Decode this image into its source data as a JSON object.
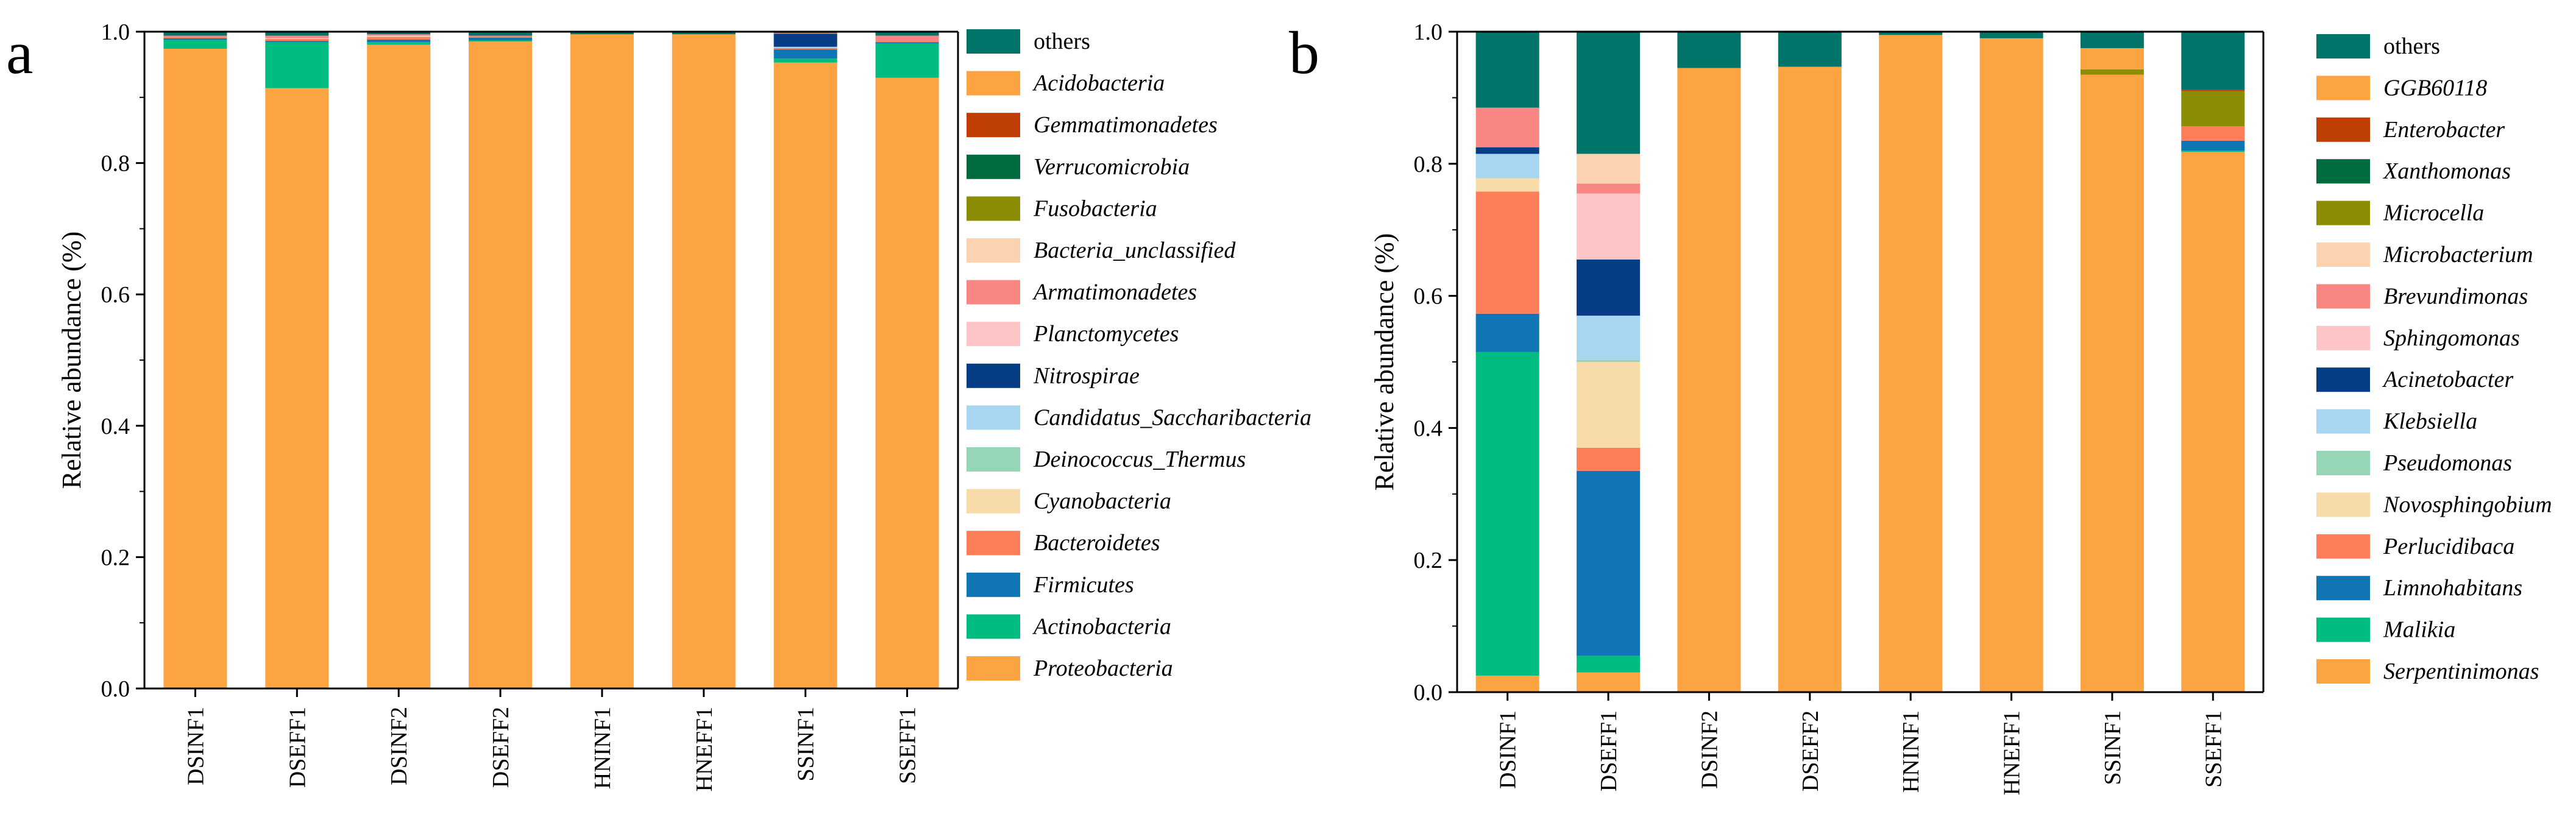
{
  "figure": {
    "panel_a_letter": "a",
    "panel_b_letter": "b"
  },
  "chart_data": [
    {
      "type": "bar",
      "stacked": true,
      "panel": "a",
      "title": "",
      "xlabel": "",
      "ylabel": "Relative abundance (%)",
      "ylim": [
        0,
        1.0
      ],
      "yticks": [
        "0.0",
        "0.2",
        "0.4",
        "0.6",
        "0.8",
        "1.0"
      ],
      "categories": [
        "DSINF1",
        "DSEFF1",
        "DSINF2",
        "DSEFF2",
        "HNINF1",
        "HNEFF1",
        "SSINF1",
        "SSEFF1"
      ],
      "legend_title": "",
      "legend_position": "right",
      "series": [
        {
          "name": "Proteobacteria",
          "color": "#FBA441",
          "italic": true,
          "values": [
            0.974,
            0.914,
            0.98,
            0.985,
            0.996,
            0.996,
            0.953,
            0.93
          ]
        },
        {
          "name": "Actinobacteria",
          "color": "#00BC80",
          "italic": true,
          "values": [
            0.014,
            0.07,
            0.004,
            0.002,
            0.0,
            0.0,
            0.006,
            0.052
          ]
        },
        {
          "name": "Firmicutes",
          "color": "#0F75B4",
          "italic": true,
          "values": [
            0.002,
            0.002,
            0.004,
            0.004,
            0.0,
            0.0,
            0.014,
            0.002
          ]
        },
        {
          "name": "Bacteroidetes",
          "color": "#FC7F5A",
          "italic": true,
          "values": [
            0.002,
            0.003,
            0.004,
            0.002,
            0.0,
            0.0,
            0.002,
            0.002
          ]
        },
        {
          "name": "Cyanobacteria",
          "color": "#F7DBA8",
          "italic": true,
          "values": [
            0.0,
            0.001,
            0.0,
            0.0,
            0.0,
            0.0,
            0.0,
            0.0
          ]
        },
        {
          "name": "Deinococcus_Thermus",
          "color": "#96D6B6",
          "italic": true,
          "values": [
            0.0,
            0.0,
            0.0,
            0.0,
            0.0,
            0.0,
            0.0,
            0.0
          ]
        },
        {
          "name": "Candidatus_Saccharibacteria",
          "color": "#A8D6F0",
          "italic": true,
          "values": [
            0.0,
            0.0,
            0.0,
            0.0,
            0.0,
            0.0,
            0.002,
            0.0
          ]
        },
        {
          "name": "Nitrospirae",
          "color": "#073D84",
          "italic": true,
          "values": [
            0.0,
            0.0,
            0.0,
            0.0,
            0.0,
            0.0,
            0.02,
            0.0
          ]
        },
        {
          "name": "Planctomycetes",
          "color": "#FDC5C5",
          "italic": true,
          "values": [
            0.0,
            0.0,
            0.002,
            0.0,
            0.0,
            0.0,
            0.0,
            0.0
          ]
        },
        {
          "name": "Armatimonadetes",
          "color": "#F98683",
          "italic": true,
          "values": [
            0.002,
            0.004,
            0.002,
            0.001,
            0.0,
            0.0,
            0.001,
            0.008
          ]
        },
        {
          "name": "Bacteria_unclassified",
          "color": "#FBD2B2",
          "italic": true,
          "values": [
            0.0,
            0.0,
            0.0,
            0.0,
            0.0,
            0.0,
            0.0,
            0.0
          ]
        },
        {
          "name": "Fusobacteria",
          "color": "#8B8E05",
          "italic": true,
          "values": [
            0.0,
            0.0,
            0.0,
            0.0,
            0.0,
            0.0,
            0.0,
            0.0
          ]
        },
        {
          "name": "Verrucomicrobia",
          "color": "#006B3E",
          "italic": true,
          "values": [
            0.0,
            0.0,
            0.0,
            0.0,
            0.0,
            0.0,
            0.0,
            0.0
          ]
        },
        {
          "name": "Gemmatimonadetes",
          "color": "#BF3E03",
          "italic": true,
          "values": [
            0.0,
            0.0,
            0.0,
            0.0,
            0.0,
            0.0,
            0.0,
            0.0
          ]
        },
        {
          "name": "Acidobacteria",
          "color": "#FBA441",
          "italic": true,
          "values": [
            0.0,
            0.0,
            0.0,
            0.0,
            0.0,
            0.0,
            0.0,
            0.0
          ]
        },
        {
          "name": "others",
          "color": "#007469",
          "italic": false,
          "values": [
            0.006,
            0.006,
            0.004,
            0.006,
            0.004,
            0.004,
            0.002,
            0.006
          ]
        }
      ]
    },
    {
      "type": "bar",
      "stacked": true,
      "panel": "b",
      "title": "",
      "xlabel": "",
      "ylabel": "Relative abundance (%)",
      "ylim": [
        0,
        1.0
      ],
      "yticks": [
        "0.0",
        "0.2",
        "0.4",
        "0.6",
        "0.8",
        "1.0"
      ],
      "categories": [
        "DSINF1",
        "DSEFF1",
        "DSINF2",
        "DSEFF2",
        "HNINF1",
        "HNEFF1",
        "SSINF1",
        "SSEFF1"
      ],
      "legend_title": "",
      "legend_position": "right",
      "series": [
        {
          "name": "Serpentinimonas",
          "color": "#FBA441",
          "italic": true,
          "values": [
            0.025,
            0.03,
            0.94,
            0.943,
            0.995,
            0.99,
            0.935,
            0.818
          ]
        },
        {
          "name": "Malikia",
          "color": "#00BC80",
          "italic": true,
          "values": [
            0.49,
            0.025,
            0.0,
            0.0,
            0.0,
            0.0,
            0.0,
            0.002
          ]
        },
        {
          "name": "Limnohabitans",
          "color": "#0F75B4",
          "italic": true,
          "values": [
            0.058,
            0.28,
            0.0,
            0.0,
            0.0,
            0.0,
            0.0,
            0.015
          ]
        },
        {
          "name": "Perlucidibaca",
          "color": "#FC7F5A",
          "italic": true,
          "values": [
            0.185,
            0.035,
            0.0,
            0.0,
            0.0,
            0.0,
            0.0,
            0.022
          ]
        },
        {
          "name": "Novosphingobium",
          "color": "#F7DBA8",
          "italic": true,
          "values": [
            0.02,
            0.13,
            0.0,
            0.0,
            0.0,
            0.0,
            0.0,
            0.0
          ]
        },
        {
          "name": "Pseudomonas",
          "color": "#96D6B6",
          "italic": true,
          "values": [
            0.0,
            0.003,
            0.0,
            0.0,
            0.0,
            0.0,
            0.0,
            0.0
          ]
        },
        {
          "name": "Klebsiella",
          "color": "#A8D6F0",
          "italic": true,
          "values": [
            0.037,
            0.067,
            0.0,
            0.0,
            0.0,
            0.0,
            0.0,
            0.0
          ]
        },
        {
          "name": "Acinetobacter",
          "color": "#073D84",
          "italic": true,
          "values": [
            0.01,
            0.085,
            0.0,
            0.0,
            0.0,
            0.0,
            0.0,
            0.0
          ]
        },
        {
          "name": "Sphingomonas",
          "color": "#FDC5C5",
          "italic": true,
          "values": [
            0.0,
            0.1,
            0.0,
            0.0,
            0.0,
            0.0,
            0.0,
            0.0
          ]
        },
        {
          "name": "Brevundimonas",
          "color": "#F98683",
          "italic": true,
          "values": [
            0.06,
            0.015,
            0.0,
            0.0,
            0.0,
            0.0,
            0.0,
            0.0
          ]
        },
        {
          "name": "Microbacterium",
          "color": "#FBD2B2",
          "italic": true,
          "values": [
            0.0,
            0.045,
            0.0,
            0.0,
            0.0,
            0.0,
            0.0,
            0.0
          ]
        },
        {
          "name": "Microcella",
          "color": "#8B8E05",
          "italic": true,
          "values": [
            0.0,
            0.0,
            0.0,
            0.0,
            0.0,
            0.0,
            0.008,
            0.053
          ]
        },
        {
          "name": "Xanthomonas",
          "color": "#006B3E",
          "italic": true,
          "values": [
            0.0,
            0.0,
            0.0,
            0.0,
            0.0,
            0.0,
            0.0,
            0.0
          ]
        },
        {
          "name": "Enterobacter",
          "color": "#BF3E03",
          "italic": true,
          "values": [
            0.0,
            0.0,
            0.0,
            0.0,
            0.0,
            0.0,
            0.0,
            0.002
          ]
        },
        {
          "name": "GGB60118",
          "color": "#FBA441",
          "italic": true,
          "values": [
            0.0,
            0.0,
            0.005,
            0.004,
            0.0,
            0.0,
            0.032,
            0.0
          ]
        },
        {
          "name": "others",
          "color": "#007469",
          "italic": false,
          "values": [
            0.115,
            0.185,
            0.055,
            0.053,
            0.005,
            0.01,
            0.025,
            0.088
          ]
        }
      ]
    }
  ]
}
